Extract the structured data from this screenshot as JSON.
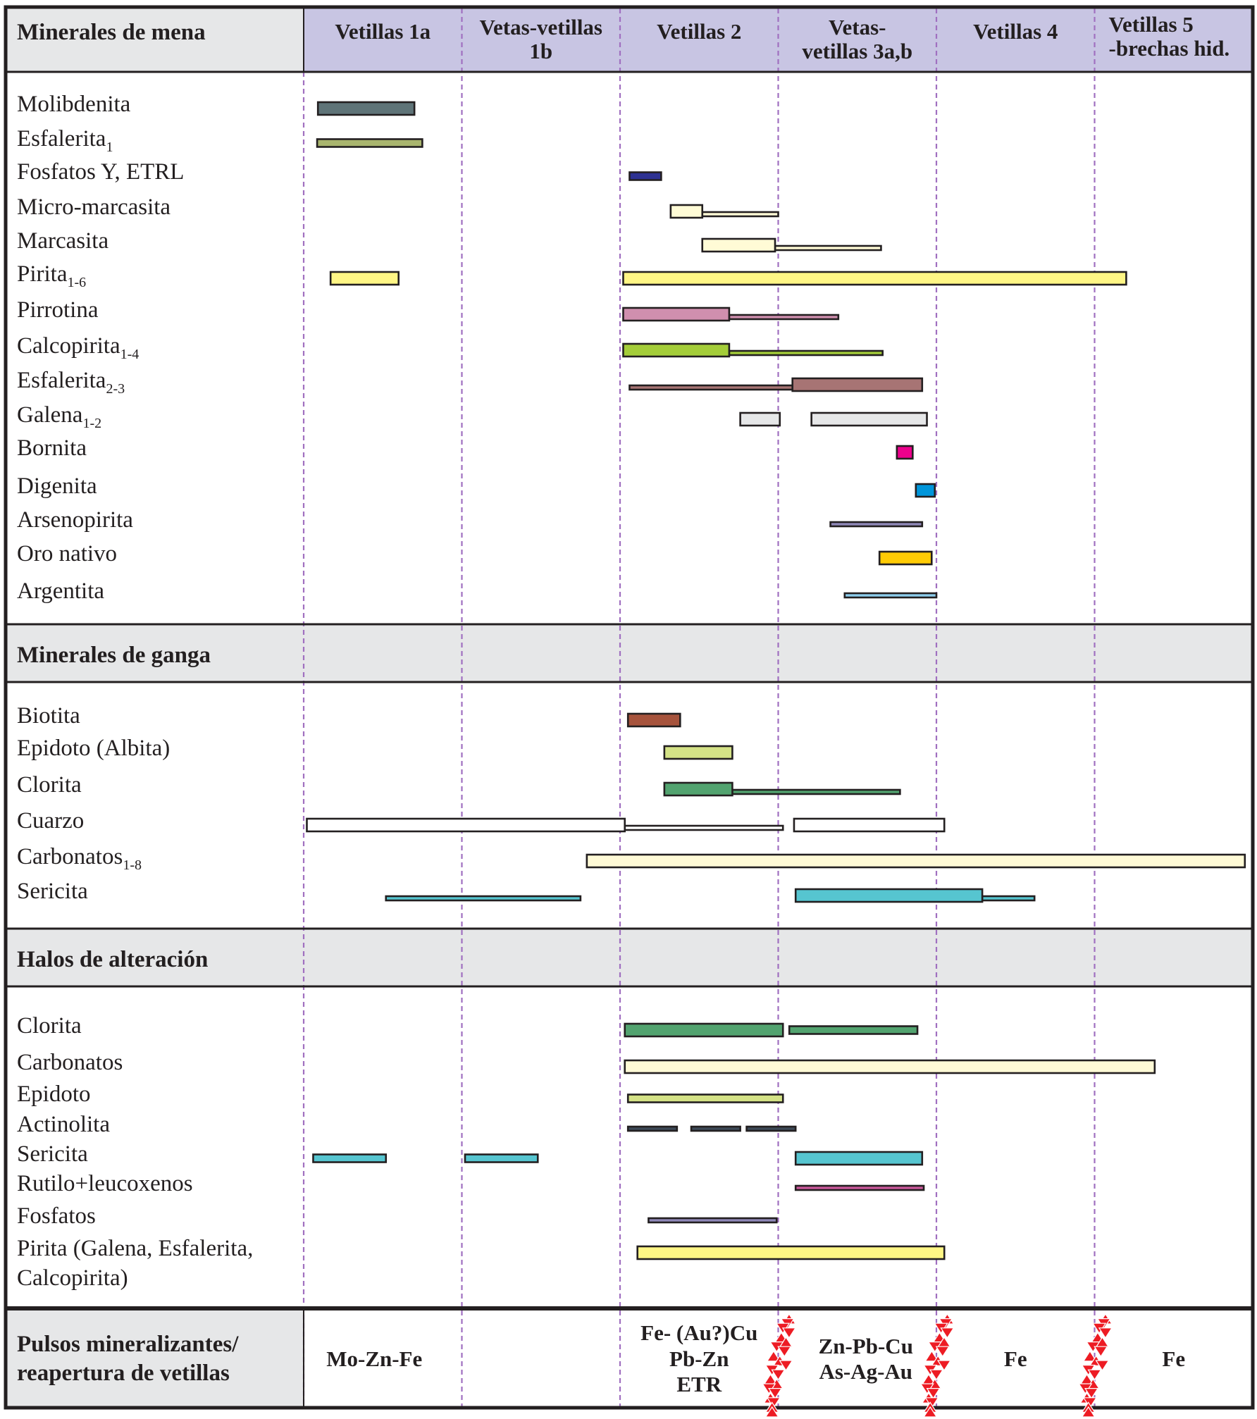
{
  "chart_data": {
    "type": "gantt",
    "title": "",
    "x_unit": "stage (0 = start of Vetillas 1a, each stage = 1 unit)",
    "stages": [
      "Vetillas 1a",
      "Vetas-vetillas 1b",
      "Vetillas 2",
      "Vetas- vetillas 3a,b",
      "Vetillas 4",
      "Vetillas 5 -brechas hid."
    ],
    "stage_header_lines": [
      [
        "Vetillas 1a"
      ],
      [
        "Vetas-vetillas",
        "1b"
      ],
      [
        "Vetillas 2"
      ],
      [
        "Vetas-",
        "vetillas 3a,b"
      ],
      [
        "Vetillas 4"
      ],
      [
        "Vetillas 5",
        "-brechas hid."
      ]
    ],
    "sections": [
      {
        "title": "Minerales de mena",
        "rows": [
          {
            "name": "Molibdenita",
            "sub": "",
            "bars": [
              {
                "from": 0.09,
                "to": 0.7,
                "w": "thick",
                "color": "#5f7478"
              }
            ]
          },
          {
            "name": "Esfalerita",
            "sub": "1",
            "bars": [
              {
                "from": 0.085,
                "to": 0.75,
                "w": "mid",
                "color": "#a9b56e"
              }
            ]
          },
          {
            "name": "Fosfatos Y, ETRL",
            "sub": "",
            "bars": [
              {
                "from": 2.06,
                "to": 2.26,
                "w": "mid",
                "color": "#2e3192"
              }
            ]
          },
          {
            "name": "Micro-marcasita",
            "sub": "",
            "bars": [
              {
                "from": 2.32,
                "to": 2.52,
                "w": "thick",
                "color": "#fffbd6"
              },
              {
                "from": 2.52,
                "to": 3.0,
                "w": "thin",
                "color": "#fffbd6"
              }
            ]
          },
          {
            "name": "Marcasita",
            "sub": "",
            "bars": [
              {
                "from": 2.52,
                "to": 2.98,
                "w": "thick",
                "color": "#fffbd6"
              },
              {
                "from": 2.98,
                "to": 3.65,
                "w": "thin",
                "color": "#fffbd6"
              }
            ]
          },
          {
            "name": "Pirita",
            "sub": "1-6",
            "bars": [
              {
                "from": 0.17,
                "to": 0.6,
                "w": "thick",
                "color": "#fff685"
              },
              {
                "from": 2.02,
                "to": 5.2,
                "w": "thick",
                "color": "#fff685"
              }
            ]
          },
          {
            "name": "Pirrotina",
            "sub": "",
            "bars": [
              {
                "from": 2.02,
                "to": 2.69,
                "w": "thick",
                "color": "#d08fae"
              },
              {
                "from": 2.69,
                "to": 3.38,
                "w": "thin",
                "color": "#d08fae"
              }
            ]
          },
          {
            "name": "Calcopirita",
            "sub": "1-4",
            "bars": [
              {
                "from": 2.02,
                "to": 2.69,
                "w": "thick",
                "color": "#a4cd39"
              },
              {
                "from": 2.69,
                "to": 3.66,
                "w": "thin",
                "color": "#a4cd39"
              }
            ]
          },
          {
            "name": "Esfalerita",
            "sub": "2-3",
            "bars": [
              {
                "from": 2.06,
                "to": 3.09,
                "w": "thin",
                "color": "#a77474"
              },
              {
                "from": 3.09,
                "to": 3.91,
                "w": "thick",
                "color": "#a77474"
              }
            ]
          },
          {
            "name": "Galena",
            "sub": "1-2",
            "bars": [
              {
                "from": 2.76,
                "to": 3.01,
                "w": "thick",
                "color": "#e6e7e8"
              },
              {
                "from": 3.21,
                "to": 3.94,
                "w": "thick",
                "color": "#e6e7e8"
              }
            ]
          },
          {
            "name": "Bornita",
            "sub": "",
            "bars": [
              {
                "from": 3.75,
                "to": 3.85,
                "w": "thick",
                "color": "#ec008c"
              }
            ]
          },
          {
            "name": "Digenita",
            "sub": "",
            "bars": [
              {
                "from": 3.87,
                "to": 3.99,
                "w": "thick",
                "color": "#0095da"
              }
            ]
          },
          {
            "name": "Arsenopirita",
            "sub": "",
            "bars": [
              {
                "from": 3.33,
                "to": 3.91,
                "w": "thin",
                "color": "#8f88b8"
              }
            ]
          },
          {
            "name": "Oro nativo",
            "sub": "",
            "bars": [
              {
                "from": 3.64,
                "to": 3.97,
                "w": "thick",
                "color": "#ffcb05"
              }
            ]
          },
          {
            "name": "Argentita",
            "sub": "",
            "bars": [
              {
                "from": 3.42,
                "to": 4.0,
                "w": "thin",
                "color": "#8ccdec"
              }
            ]
          }
        ]
      },
      {
        "title": "Minerales de ganga",
        "rows": [
          {
            "name": "Biotita",
            "sub": "",
            "bars": [
              {
                "from": 2.05,
                "to": 2.38,
                "w": "thick",
                "color": "#a6533c"
              }
            ]
          },
          {
            "name": "Epidoto (Albita)",
            "sub": "",
            "bars": [
              {
                "from": 2.28,
                "to": 2.71,
                "w": "thick",
                "color": "#d4e286"
              }
            ]
          },
          {
            "name": "Clorita",
            "sub": "",
            "bars": [
              {
                "from": 2.28,
                "to": 2.71,
                "w": "thick",
                "color": "#52a36f"
              },
              {
                "from": 2.71,
                "to": 3.77,
                "w": "thin",
                "color": "#52a36f"
              }
            ]
          },
          {
            "name": "Cuarzo",
            "sub": "",
            "bars": [
              {
                "from": 0.02,
                "to": 2.03,
                "w": "thick",
                "color": "#ffffff"
              },
              {
                "from": 2.03,
                "to": 3.03,
                "w": "thin",
                "color": "#ffffff"
              },
              {
                "from": 3.1,
                "to": 4.05,
                "w": "thick",
                "color": "#ffffff"
              }
            ]
          },
          {
            "name": "Carbonatos",
            "sub": "1-8",
            "bars": [
              {
                "from": 1.79,
                "to": 5.95,
                "w": "thick",
                "color": "#fffad6"
              }
            ]
          },
          {
            "name": "Sericita",
            "sub": "",
            "bars": [
              {
                "from": 0.52,
                "to": 1.75,
                "w": "thin",
                "color": "#56c5d0"
              },
              {
                "from": 3.11,
                "to": 4.29,
                "w": "thick",
                "color": "#56c5d0"
              },
              {
                "from": 4.29,
                "to": 4.62,
                "w": "thin",
                "color": "#56c5d0"
              }
            ]
          }
        ]
      },
      {
        "title": "Halos de alteración",
        "rows": [
          {
            "name": "Clorita",
            "sub": "",
            "bars": [
              {
                "from": 2.03,
                "to": 3.03,
                "w": "thick",
                "color": "#52a36f"
              },
              {
                "from": 3.07,
                "to": 3.88,
                "w": "mid",
                "color": "#52a36f"
              }
            ]
          },
          {
            "name": "Carbonatos",
            "sub": "",
            "bars": [
              {
                "from": 2.03,
                "to": 5.38,
                "w": "thick",
                "color": "#fffad6"
              }
            ]
          },
          {
            "name": "Epidoto",
            "sub": "",
            "bars": [
              {
                "from": 2.05,
                "to": 3.03,
                "w": "mid",
                "color": "#d4e286"
              }
            ]
          },
          {
            "name": "Actinolita",
            "sub": "",
            "bars": [
              {
                "from": 2.05,
                "to": 2.36,
                "w": "thin",
                "color": "#3d4a57"
              },
              {
                "from": 2.45,
                "to": 2.76,
                "w": "thin",
                "color": "#3d4a57"
              },
              {
                "from": 2.8,
                "to": 3.11,
                "w": "thin",
                "color": "#3d4a57"
              }
            ]
          },
          {
            "name": "Sericita",
            "sub": "",
            "bars": [
              {
                "from": 0.06,
                "to": 0.52,
                "w": "mid",
                "color": "#56c5d0"
              },
              {
                "from": 1.02,
                "to": 1.48,
                "w": "mid",
                "color": "#56c5d0"
              },
              {
                "from": 3.11,
                "to": 3.91,
                "w": "thick",
                "color": "#56c5d0"
              }
            ]
          },
          {
            "name": "Rutilo+leucoxenos",
            "sub": "",
            "bars": [
              {
                "from": 3.11,
                "to": 3.92,
                "w": "thin",
                "color": "#c9579a"
              }
            ]
          },
          {
            "name": "Fosfatos",
            "sub": "",
            "bars": [
              {
                "from": 2.18,
                "to": 2.99,
                "w": "thin",
                "color": "#8f88b8"
              }
            ]
          },
          {
            "name": "Pirita (Galena, Esfalerita,",
            "name2": "Calcopirita)",
            "sub": "",
            "bars": [
              {
                "from": 2.11,
                "to": 4.05,
                "w": "thick",
                "color": "#fff685"
              }
            ]
          }
        ]
      }
    ],
    "pulses": {
      "title_lines": [
        "Pulsos mineralizantes/",
        "reapertura de vetillas"
      ],
      "labels": [
        {
          "stage_index": 0,
          "lines": [
            "Mo-Zn-Fe"
          ]
        },
        {
          "stage_index": 2,
          "lines": [
            "Fe- (Au?)Cu",
            "Pb-Zn",
            "ETR"
          ]
        },
        {
          "stage_index": 3,
          "lines": [
            "Zn-Pb-Cu",
            "As-Ag-Au"
          ]
        },
        {
          "stage_index": 4,
          "lines": [
            "Fe"
          ]
        },
        {
          "stage_index": 5,
          "lines": [
            "Fe"
          ]
        }
      ],
      "reopening_markers_at_stage_boundaries": [
        3,
        4,
        5
      ],
      "marker_color": "#ed1c24"
    },
    "colors": {
      "header_bg": "#c8c5e3",
      "section_bg": "#e6e7e8",
      "divider": "#a070c0",
      "border": "#231f20"
    }
  }
}
